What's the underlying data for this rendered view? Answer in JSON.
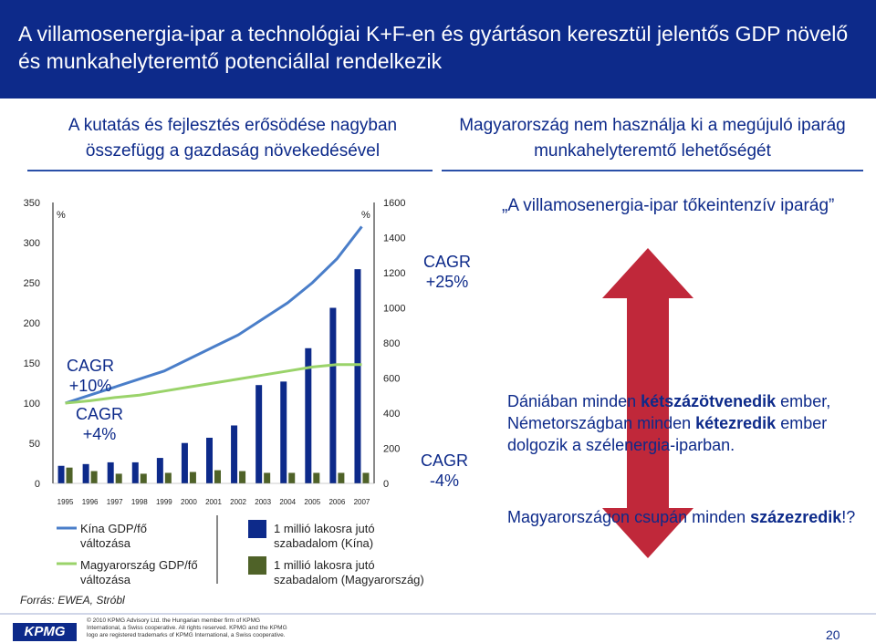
{
  "title": "A villamosenergia-ipar a technológiai K+F-en és gyártáson keresztül jelentős GDP növelő és munkahelyteremtő potenciállal rendelkezik",
  "left_heading": "A kutatás és fejlesztés erősödése nagyban összefügg a gazdaság növekedésével",
  "right_heading": "Magyarország nem használja ki a megújuló iparág munkahelyteremtő lehetőségét",
  "right_title": "„A villamosenergia-ipar tőkeintenzív iparág”",
  "right_para1": {
    "p1": "Dániában minden ",
    "b1": "kétszázötvenedik",
    "p2": " ember, Németországban minden ",
    "b2": "kétezredik",
    "p3": " ember dolgozik a szélenergia-iparban."
  },
  "right_para2": {
    "p1": "Magyarországon csupán minden ",
    "b1": "százezredik",
    "p2": "!?"
  },
  "cagr_labels": {
    "plus25": "CAGR +25%",
    "plus10": "CAGR +10%",
    "plus4": "CAGR +4%",
    "minus4": "CAGR -4%"
  },
  "legend": {
    "china_gdp": "Kína GDP/fő változása",
    "hu_gdp": "Magyarország GDP/fő változása",
    "china_jobs": "1 millió lakosra jutó szabadalom (Kína)",
    "hu_jobs": "1 millió lakosra jutó szabadalom (Magyarország)"
  },
  "source": "Forrás: EWEA, Stróbl",
  "logo": "KPMG",
  "copyright": "© 2010 KPMG Advisory Ltd. the Hungarian member firm of KPMG International, a Swiss cooperative. All rights reserved. KPMG and the KPMG logo are registered trademarks of KPMG International, a Swiss cooperative.",
  "page_number": "20",
  "colors": {
    "title_bg": "#0d2a8a",
    "china_bar": "#0d2a8a",
    "hu_bar": "#4f6228",
    "china_line": "#4a7ec9",
    "hu_line": "#9ad36a",
    "arrow": "#c0283a"
  },
  "chart_data": {
    "type": "bar",
    "categories": [
      "1995",
      "1996",
      "1997",
      "1998",
      "1999",
      "2000",
      "2001",
      "2002",
      "2003",
      "2004",
      "2005",
      "2006",
      "2007"
    ],
    "left_axis": {
      "label": "%",
      "ticks": [
        0,
        50,
        100,
        150,
        200,
        250,
        300,
        350
      ],
      "ylim": [
        0,
        350
      ]
    },
    "right_axis": {
      "label": "%",
      "ticks": [
        0,
        200,
        400,
        600,
        800,
        1000,
        1200,
        1400,
        1600
      ],
      "ylim": [
        0,
        1600
      ]
    },
    "series": [
      {
        "name": "Kína GDP/fő változása",
        "kind": "line",
        "axis": "left",
        "values": [
          100,
          110,
          120,
          130,
          140,
          155,
          170,
          185,
          205,
          225,
          250,
          280,
          320
        ]
      },
      {
        "name": "Magyarország GDP/fő változása",
        "kind": "line",
        "axis": "left",
        "values": [
          100,
          103,
          107,
          110,
          115,
          120,
          125,
          130,
          135,
          140,
          145,
          148,
          148
        ]
      },
      {
        "name": "1 millió lakosra jutó szabadalom (Kína)",
        "kind": "bar",
        "axis": "right",
        "values": [
          100,
          110,
          120,
          120,
          145,
          230,
          260,
          330,
          560,
          580,
          770,
          1000,
          1220
        ]
      },
      {
        "name": "1 millió lakosra jutó szabadalom (Magyarország)",
        "kind": "bar",
        "axis": "right",
        "values": [
          90,
          70,
          55,
          55,
          60,
          65,
          75,
          70,
          60,
          60,
          60,
          60,
          60
        ]
      }
    ]
  }
}
